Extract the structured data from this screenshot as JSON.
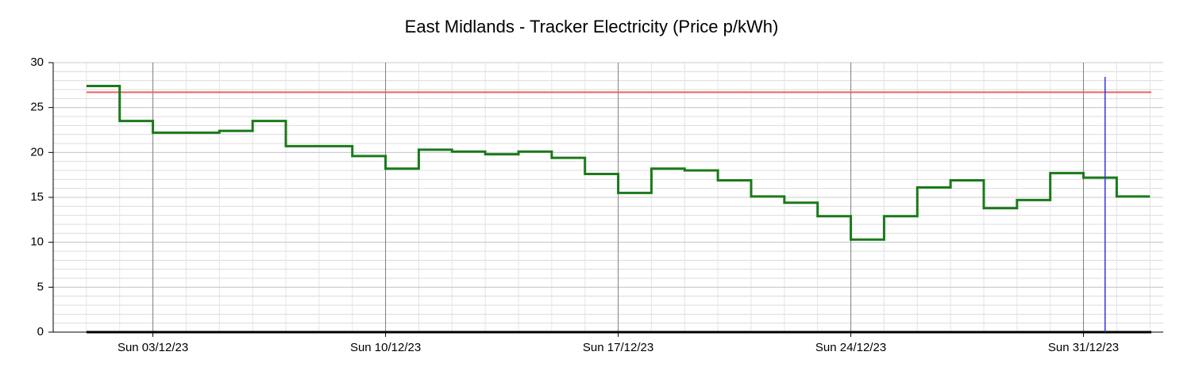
{
  "chart_data": {
    "type": "line",
    "step": "post",
    "title": "East Midlands - Tracker Electricity (Price p/kWh)",
    "x": [
      0,
      1,
      2,
      3,
      4,
      5,
      6,
      7,
      8,
      9,
      10,
      11,
      12,
      13,
      14,
      15,
      16,
      17,
      18,
      19,
      20,
      21,
      22,
      23,
      24,
      25,
      26,
      27,
      28,
      29,
      30,
      31
    ],
    "series": [
      {
        "color": "#1a7a1a",
        "values": [
          27.4,
          23.5,
          22.2,
          22.2,
          22.4,
          23.5,
          20.7,
          20.7,
          19.6,
          18.2,
          20.3,
          20.1,
          19.8,
          20.1,
          19.4,
          17.6,
          15.5,
          18.2,
          18.0,
          16.9,
          15.1,
          14.4,
          12.9,
          10.3,
          12.9,
          16.1,
          16.9,
          13.8,
          14.7,
          17.7,
          17.2,
          15.1
        ]
      }
    ],
    "xlim": [
      -1,
      32.4
    ],
    "xticks": [
      {
        "value": 2,
        "label": "Sun 03/12/23"
      },
      {
        "value": 9,
        "label": "Sun 10/12/23"
      },
      {
        "value": 16,
        "label": "Sun 17/12/23"
      },
      {
        "value": 23,
        "label": "Sun 24/12/23"
      },
      {
        "value": 30,
        "label": "Sun 31/12/23"
      }
    ],
    "ylim": [
      0,
      30
    ],
    "yticks": [
      0,
      5,
      10,
      15,
      20,
      25,
      30
    ],
    "grid": true,
    "minor_grid": true,
    "hlines": [
      {
        "y": 26.7,
        "color": "#f06060"
      }
    ],
    "vlines": [
      {
        "x": 30.65,
        "color": "#3535d8"
      }
    ]
  }
}
